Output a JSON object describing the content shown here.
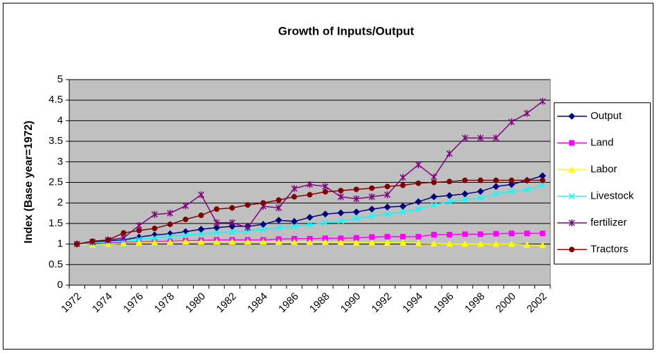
{
  "chart_data": {
    "type": "line",
    "title": "Growth of Inputs/Output",
    "y_label": "Index (Base year=1972)",
    "categories": [
      "1972",
      null,
      "1974",
      null,
      "1976",
      null,
      "1978",
      null,
      "1980",
      null,
      "1982",
      null,
      "1984",
      null,
      "1986",
      null,
      "1988",
      null,
      "1990",
      null,
      "1992",
      null,
      "1994",
      null,
      "1996",
      null,
      "1998",
      null,
      "2000",
      null,
      "2002"
    ],
    "ylim": [
      0,
      5
    ],
    "yticks": [
      0,
      0.5,
      1,
      1.5,
      2,
      2.5,
      3,
      3.5,
      4,
      4.5,
      5
    ],
    "grid": true,
    "legend": "right",
    "series": [
      {
        "name": "Output",
        "color": "#000080",
        "marker": "diamond",
        "values": [
          1.0,
          1.05,
          1.08,
          1.1,
          1.17,
          1.22,
          1.25,
          1.3,
          1.36,
          1.4,
          1.43,
          1.43,
          1.48,
          1.58,
          1.55,
          1.65,
          1.73,
          1.76,
          1.78,
          1.85,
          1.9,
          1.92,
          2.03,
          2.15,
          2.18,
          2.22,
          2.28,
          2.4,
          2.45,
          2.55,
          2.66
        ]
      },
      {
        "name": "Land",
        "color": "#ff00ff",
        "marker": "square",
        "values": [
          1.0,
          1.02,
          1.03,
          1.04,
          1.05,
          1.06,
          1.07,
          1.08,
          1.09,
          1.1,
          1.1,
          1.1,
          1.1,
          1.12,
          1.13,
          1.13,
          1.14,
          1.14,
          1.15,
          1.17,
          1.18,
          1.18,
          1.18,
          1.23,
          1.23,
          1.24,
          1.24,
          1.25,
          1.26,
          1.26,
          1.26
        ]
      },
      {
        "name": "Labor",
        "color": "#ffff00",
        "marker": "triangle",
        "values": [
          1.0,
          0.98,
          1.0,
          1.02,
          1.03,
          1.04,
          1.05,
          1.06,
          1.06,
          1.06,
          1.06,
          1.06,
          1.06,
          1.05,
          1.05,
          1.05,
          1.05,
          1.04,
          1.03,
          1.03,
          1.03,
          1.03,
          1.02,
          1.01,
          1.0,
          1.0,
          1.0,
          1.0,
          1.0,
          0.98,
          0.97
        ]
      },
      {
        "name": "Livestock",
        "color": "#00ffff",
        "marker": "x",
        "values": [
          1.0,
          1.03,
          1.05,
          1.08,
          1.12,
          1.15,
          1.18,
          1.22,
          1.25,
          1.28,
          1.3,
          1.32,
          1.35,
          1.4,
          1.43,
          1.47,
          1.52,
          1.56,
          1.62,
          1.68,
          1.73,
          1.78,
          1.85,
          1.95,
          2.03,
          2.08,
          2.12,
          2.22,
          2.28,
          2.32,
          2.43
        ]
      },
      {
        "name": "fertilizer",
        "color": "#800080",
        "marker": "star",
        "values": [
          1.0,
          1.05,
          1.1,
          1.15,
          1.45,
          1.72,
          1.75,
          1.93,
          2.2,
          1.52,
          1.52,
          1.4,
          1.92,
          1.88,
          2.35,
          2.45,
          2.4,
          2.15,
          2.1,
          2.15,
          2.2,
          2.62,
          2.93,
          2.63,
          3.2,
          3.58,
          3.58,
          3.58,
          3.97,
          4.18,
          4.47
        ]
      },
      {
        "name": "Tractors",
        "color": "#800000",
        "marker": "circle",
        "values": [
          1.0,
          1.07,
          1.1,
          1.27,
          1.33,
          1.38,
          1.48,
          1.6,
          1.7,
          1.85,
          1.88,
          1.95,
          2.0,
          2.07,
          2.15,
          2.2,
          2.27,
          2.3,
          2.33,
          2.36,
          2.4,
          2.43,
          2.48,
          2.5,
          2.52,
          2.55,
          2.55,
          2.55,
          2.55,
          2.55,
          2.55
        ]
      }
    ]
  }
}
